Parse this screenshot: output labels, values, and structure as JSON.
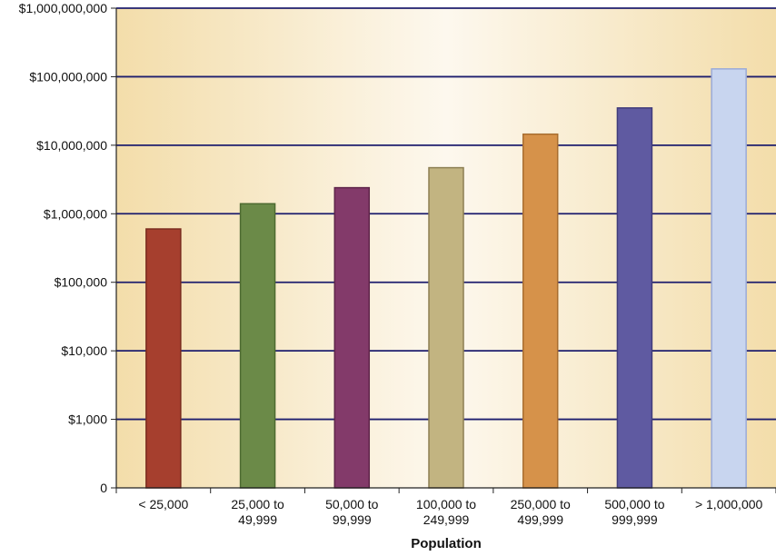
{
  "chart_data": {
    "type": "bar",
    "scale": "log",
    "xlabel": "Population",
    "ylabel": "",
    "categories": [
      [
        "< 25,000"
      ],
      [
        "25,000 to",
        "49,999"
      ],
      [
        "50,000 to",
        "99,999"
      ],
      [
        "100,000 to",
        "249,999"
      ],
      [
        "250,000 to",
        "499,999"
      ],
      [
        "500,000 to",
        "999,999"
      ],
      [
        "> 1,000,000"
      ]
    ],
    "values": [
      600000,
      1400000,
      2400000,
      4700000,
      14500000,
      35000000,
      130000000
    ],
    "colors": [
      "#a63f2e",
      "#6b8a48",
      "#833a6a",
      "#c2b481",
      "#d6924a",
      "#5f5aa1",
      "#c8d5ef"
    ],
    "stroke_colors": [
      "#7a2b1e",
      "#4d6a30",
      "#5e2449",
      "#8c7f52",
      "#a86e30",
      "#403b7a",
      "#9aaad8"
    ],
    "y_ticks": [
      1,
      1000,
      10000,
      100000,
      1000000,
      10000000,
      100000000,
      1000000000
    ],
    "y_tick_labels": [
      "0",
      "$1,000",
      "$10,000",
      "$100,000",
      "$1,000,000",
      "$10,000,000",
      "$100,000,000",
      "$1,000,000,000"
    ],
    "grid": true,
    "background_gradient": [
      "#f3ddaa",
      "#fdf8ee",
      "#f3ddaa"
    ],
    "grid_color": "#1e1e6e"
  }
}
